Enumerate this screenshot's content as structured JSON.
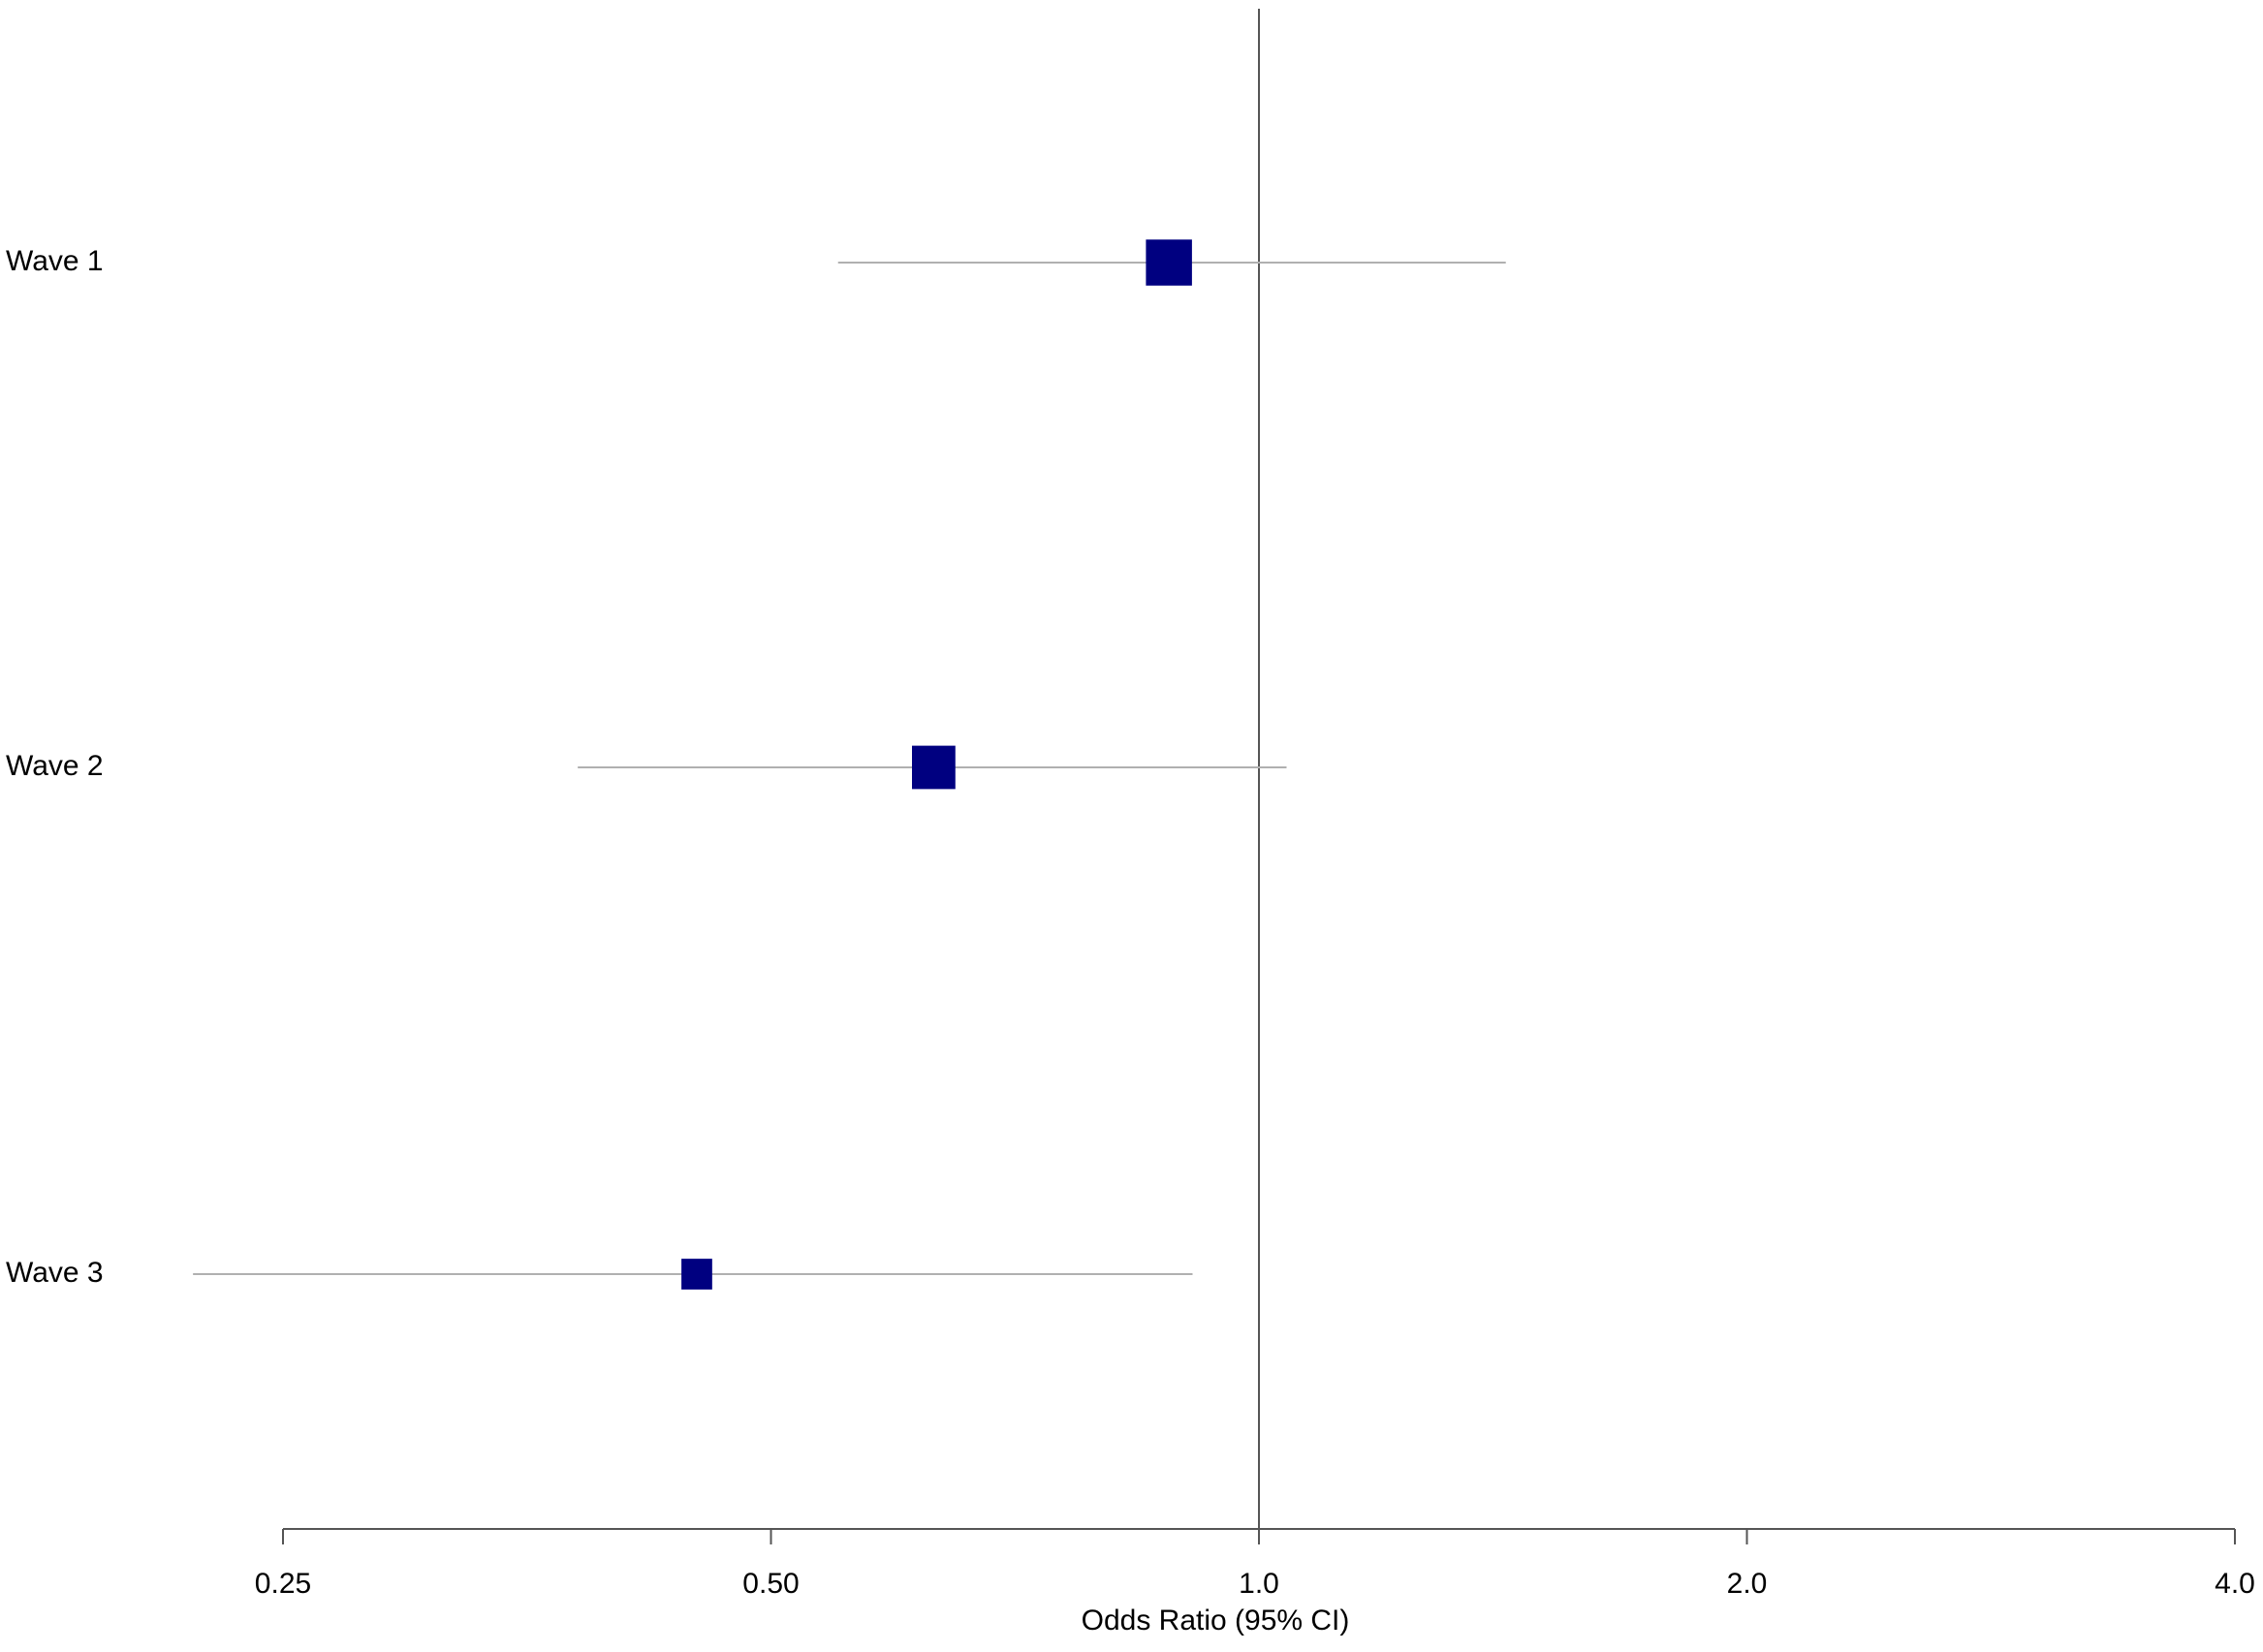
{
  "chart_data": {
    "type": "forest",
    "x_label": "Odds Ratio (95% CI)",
    "categories": [
      "Wave 1",
      "Wave 2",
      "Wave 3"
    ],
    "values": [
      0.88,
      0.63,
      0.45
    ],
    "lower": [
      0.55,
      0.38,
      0.22
    ],
    "upper": [
      1.42,
      1.04,
      0.91
    ],
    "color": "#000080",
    "ci_color": "#b0b0b0",
    "xscale": "log",
    "xlim": [
      0.25,
      4
    ],
    "xticks": [
      0.25,
      {
        "value": 0.5,
        "label": "0.50"
      },
      {
        "value": 1,
        "label": "1.0"
      },
      {
        "value": 2,
        "label": "2.0"
      },
      {
        "value": 4,
        "label": "4.0"
      }
    ],
    "reference_line": 1
  }
}
